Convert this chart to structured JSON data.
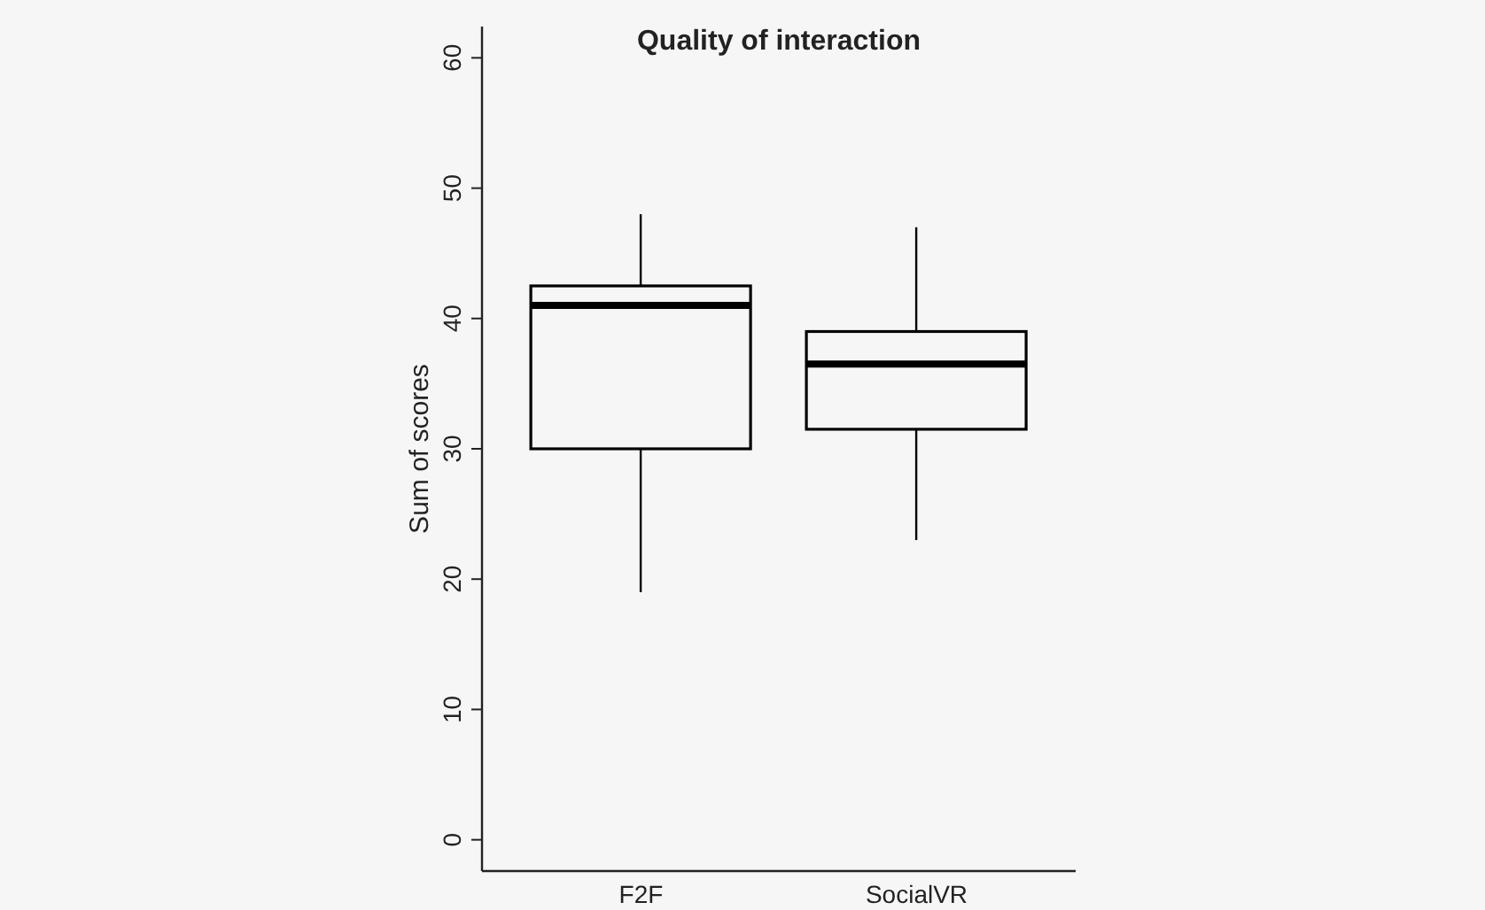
{
  "chart_data": {
    "type": "box",
    "title": "Quality of interaction",
    "ylabel": "Sum of scores",
    "categories": [
      "F2F",
      "SocialVR"
    ],
    "boxes": [
      {
        "low": 19,
        "q1": 30,
        "median": 41,
        "q3": 42.5,
        "high": 48
      },
      {
        "low": 23,
        "q1": 31.5,
        "median": 36.5,
        "q3": 39,
        "high": 47
      }
    ],
    "color": "#000000",
    "ylim": [
      -2.4,
      62.4
    ],
    "yticks": [
      0,
      10,
      20,
      30,
      40,
      50,
      60
    ]
  }
}
